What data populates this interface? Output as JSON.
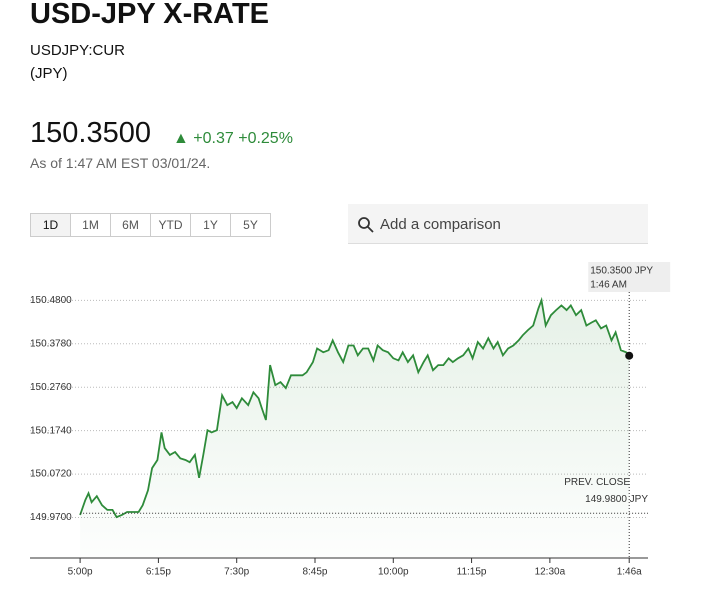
{
  "header": {
    "title": "USD-JPY X-RATE",
    "ticker": "USDJPY:CUR",
    "currency": "(JPY)",
    "price": "150.3500",
    "change": "+0.37",
    "change_pct": "+0.25%",
    "as_of": "As of 1:47 AM EST 03/01/24."
  },
  "ranges": [
    "1D",
    "1M",
    "6M",
    "YTD",
    "1Y",
    "5Y"
  ],
  "search_placeholder": "Add a comparison",
  "tooltip": {
    "value": "150.3500 JPY",
    "time": "1:46 AM"
  },
  "prev_close": {
    "label": "PREV. CLOSE",
    "value_label": "149.9800 JPY"
  },
  "chart_data": {
    "type": "line",
    "x": [
      0,
      5,
      8,
      11,
      16,
      21,
      26,
      31,
      35,
      40,
      45,
      51,
      56,
      60,
      65,
      69,
      74,
      78,
      81,
      86,
      91,
      96,
      101,
      105,
      110,
      114,
      118,
      122,
      126,
      131,
      136,
      141,
      146,
      150,
      155,
      161,
      166,
      171,
      174,
      178,
      182,
      187,
      192,
      197,
      202,
      207,
      213,
      217,
      223,
      227,
      233,
      238,
      242,
      247,
      252,
      257,
      262,
      266,
      271,
      276,
      281,
      285,
      290,
      295,
      300,
      305,
      309,
      314,
      319,
      324,
      329,
      333,
      338,
      343,
      348,
      353,
      357,
      362,
      367,
      372,
      376,
      381,
      386,
      391,
      396,
      400,
      405,
      410,
      415,
      420,
      424,
      429,
      434,
      439,
      442,
      446,
      451,
      456,
      461,
      466,
      470,
      475,
      480,
      485,
      490,
      494,
      499,
      504,
      509,
      513,
      518,
      523,
      526
    ],
    "series": [
      {
        "color": "#2e8b3a",
        "values": [
          149.976,
          150.011,
          150.027,
          150.006,
          150.02,
          149.999,
          149.988,
          149.988,
          149.971,
          149.976,
          149.983,
          149.983,
          149.983,
          149.999,
          150.034,
          150.086,
          150.105,
          150.17,
          150.133,
          150.117,
          150.124,
          150.109,
          150.105,
          150.1,
          150.117,
          150.063,
          150.117,
          150.175,
          150.17,
          150.175,
          150.257,
          150.234,
          150.241,
          150.227,
          150.25,
          150.234,
          150.264,
          150.25,
          150.227,
          150.199,
          150.328,
          150.281,
          150.288,
          150.274,
          150.304,
          150.304,
          150.304,
          150.311,
          150.335,
          150.367,
          150.358,
          150.363,
          150.386,
          150.358,
          150.335,
          150.374,
          150.374,
          150.351,
          150.367,
          150.367,
          150.339,
          150.374,
          150.363,
          150.358,
          150.344,
          150.339,
          150.358,
          150.335,
          150.351,
          150.311,
          150.335,
          150.351,
          150.316,
          150.328,
          150.328,
          150.344,
          150.335,
          150.344,
          150.351,
          150.367,
          150.344,
          150.382,
          150.367,
          150.391,
          150.367,
          150.382,
          150.351,
          150.367,
          150.374,
          150.386,
          150.398,
          150.41,
          150.421,
          150.461,
          150.48,
          150.421,
          150.445,
          150.457,
          150.468,
          150.457,
          150.468,
          150.445,
          150.457,
          150.421,
          150.428,
          150.433,
          150.414,
          150.421,
          150.386,
          150.405,
          150.363,
          150.358,
          150.35
        ]
      }
    ],
    "prev_close": 149.98,
    "xlim": [
      -48,
      544
    ],
    "xticks": [
      {
        "value": 0,
        "label": "5:00p"
      },
      {
        "value": 75,
        "label": "6:15p"
      },
      {
        "value": 150,
        "label": "7:30p"
      },
      {
        "value": 225,
        "label": "8:45p"
      },
      {
        "value": 300,
        "label": "10:00p"
      },
      {
        "value": 375,
        "label": "11:15p"
      },
      {
        "value": 450,
        "label": "12:30a"
      },
      {
        "value": 526,
        "label": "1:46a"
      }
    ],
    "ylim": [
      149.875,
      150.57
    ],
    "yticks": [
      {
        "value": 149.97,
        "label": "149.9700"
      },
      {
        "value": 150.072,
        "label": "150.0720"
      },
      {
        "value": 150.174,
        "label": "150.1740"
      },
      {
        "value": 150.276,
        "label": "150.2760"
      },
      {
        "value": 150.378,
        "label": "150.3780"
      },
      {
        "value": 150.48,
        "label": "150.4800"
      }
    ],
    "grid": true
  }
}
